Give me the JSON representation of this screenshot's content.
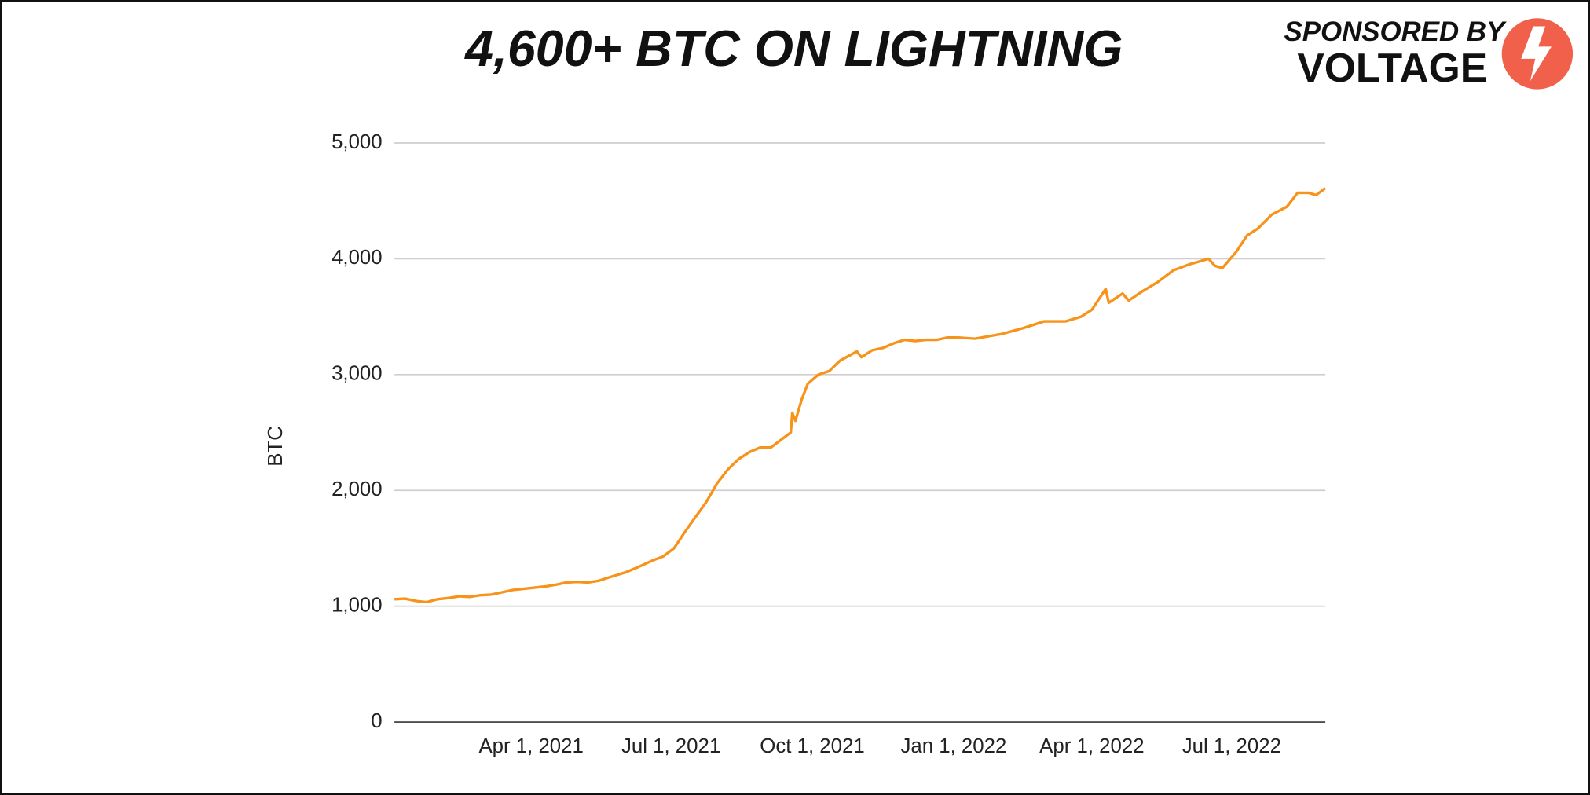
{
  "chart_data": {
    "type": "line",
    "title": "4,600+ BTC ON LIGHTNING",
    "y_label": "BTC",
    "color": "#f7931a",
    "grid": true,
    "x": [
      "2021-01-02",
      "2021-01-09",
      "2021-01-16",
      "2021-01-23",
      "2021-01-30",
      "2021-02-06",
      "2021-02-13",
      "2021-02-20",
      "2021-02-27",
      "2021-03-06",
      "2021-03-13",
      "2021-03-20",
      "2021-03-27",
      "2021-04-03",
      "2021-04-10",
      "2021-04-17",
      "2021-04-24",
      "2021-05-01",
      "2021-05-08",
      "2021-05-15",
      "2021-05-22",
      "2021-06-01",
      "2021-06-10",
      "2021-06-20",
      "2021-06-26",
      "2021-07-03",
      "2021-07-10",
      "2021-07-17",
      "2021-07-24",
      "2021-07-31",
      "2021-08-07",
      "2021-08-14",
      "2021-08-21",
      "2021-08-28",
      "2021-09-04",
      "2021-09-11",
      "2021-09-17",
      "2021-09-18",
      "2021-09-20",
      "2021-09-24",
      "2021-09-28",
      "2021-10-05",
      "2021-10-12",
      "2021-10-19",
      "2021-10-26",
      "2021-10-30",
      "2021-11-02",
      "2021-11-09",
      "2021-11-16",
      "2021-11-23",
      "2021-11-30",
      "2021-12-07",
      "2021-12-14",
      "2021-12-21",
      "2021-12-28",
      "2022-01-04",
      "2022-01-15",
      "2022-02-01",
      "2022-02-15",
      "2022-03-01",
      "2022-03-15",
      "2022-03-25",
      "2022-04-01",
      "2022-04-10",
      "2022-04-12",
      "2022-04-21",
      "2022-04-25",
      "2022-05-04",
      "2022-05-14",
      "2022-05-24",
      "2022-06-03",
      "2022-06-16",
      "2022-06-20",
      "2022-06-25",
      "2022-07-04",
      "2022-07-11",
      "2022-07-18",
      "2022-07-27",
      "2022-08-06",
      "2022-08-13",
      "2022-08-20",
      "2022-08-25",
      "2022-08-31"
    ],
    "values": [
      1060,
      1065,
      1045,
      1035,
      1060,
      1070,
      1085,
      1080,
      1095,
      1100,
      1120,
      1140,
      1150,
      1160,
      1170,
      1185,
      1205,
      1210,
      1205,
      1220,
      1250,
      1290,
      1340,
      1400,
      1430,
      1500,
      1640,
      1770,
      1900,
      2060,
      2180,
      2270,
      2330,
      2370,
      2370,
      2440,
      2500,
      2670,
      2600,
      2780,
      2920,
      3000,
      3030,
      3120,
      3170,
      3200,
      3150,
      3210,
      3230,
      3270,
      3300,
      3290,
      3300,
      3300,
      3320,
      3320,
      3310,
      3350,
      3400,
      3460,
      3460,
      3500,
      3560,
      3740,
      3620,
      3700,
      3640,
      3720,
      3800,
      3900,
      3950,
      4000,
      3940,
      3920,
      4060,
      4200,
      4260,
      4380,
      4450,
      4570,
      4570,
      4550,
      4610
    ],
    "xlim": [
      "2021-01-02",
      "2022-08-31"
    ],
    "xticks": [
      {
        "value": "2021-04-01",
        "label": "Apr 1, 2021"
      },
      {
        "value": "2021-07-01",
        "label": "Jul 1, 2021"
      },
      {
        "value": "2021-10-01",
        "label": "Oct 1, 2021"
      },
      {
        "value": "2022-01-01",
        "label": "Jan 1, 2022"
      },
      {
        "value": "2022-04-01",
        "label": "Apr 1, 2022"
      },
      {
        "value": "2022-07-01",
        "label": "Jul 1, 2022"
      }
    ],
    "ylim": [
      0,
      5000
    ],
    "yticks": [
      0,
      {
        "value": 1000,
        "label": "1,000"
      },
      {
        "value": 2000,
        "label": "2,000"
      },
      {
        "value": 3000,
        "label": "3,000"
      },
      {
        "value": 4000,
        "label": "4,000"
      },
      {
        "value": 5000,
        "label": "5,000"
      }
    ]
  },
  "sponsor": {
    "label": "SPONSORED BY",
    "name": "VOLTAGE"
  }
}
